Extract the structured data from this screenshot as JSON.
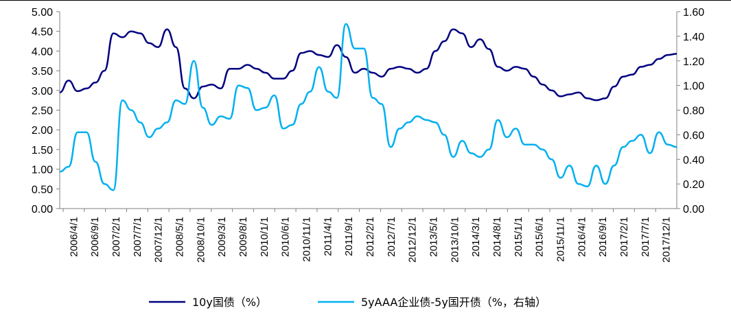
{
  "chart_data": {
    "type": "line",
    "x_labels": [
      "2006/4/1",
      "2006/9/1",
      "2007/2/1",
      "2007/7/1",
      "2007/12/1",
      "2008/5/1",
      "2008/10/1",
      "2009/3/1",
      "2009/8/1",
      "2010/1/1",
      "2010/6/1",
      "2010/11/1",
      "2011/4/1",
      "2011/9/1",
      "2012/2/1",
      "2012/7/1",
      "2012/12/1",
      "2013/5/1",
      "2013/10/1",
      "2014/3/1",
      "2014/8/1",
      "2015/1/1",
      "2015/6/1",
      "2015/11/1",
      "2016/4/1",
      "2016/9/1",
      "2017/2/1",
      "2017/7/1",
      "2017/12/1"
    ],
    "y_left": {
      "ticks": [
        "0.00",
        "0.50",
        "1.00",
        "1.50",
        "2.00",
        "2.50",
        "3.00",
        "3.50",
        "4.00",
        "4.50",
        "5.00"
      ],
      "min": 0,
      "max": 5
    },
    "y_right": {
      "ticks": [
        "0.00",
        "0.20",
        "0.40",
        "0.60",
        "0.80",
        "1.00",
        "1.20",
        "1.40",
        "1.60"
      ],
      "min": 0,
      "max": 1.6
    },
    "series": [
      {
        "name": "10y国债（%）",
        "axis": "left",
        "color": "#000080",
        "values": [
          [
            0,
            2.95
          ],
          [
            1,
            3.25
          ],
          [
            2,
            2.98
          ],
          [
            3,
            3.05
          ],
          [
            4,
            3.2
          ],
          [
            5,
            3.5
          ],
          [
            6,
            4.45
          ],
          [
            7,
            4.35
          ],
          [
            8,
            4.5
          ],
          [
            9,
            4.45
          ],
          [
            10,
            4.2
          ],
          [
            11,
            4.1
          ],
          [
            12,
            4.55
          ],
          [
            13,
            4.1
          ],
          [
            14,
            3.05
          ],
          [
            15,
            2.8
          ],
          [
            16,
            3.1
          ],
          [
            17,
            3.15
          ],
          [
            18,
            3.05
          ],
          [
            19,
            3.55
          ],
          [
            20,
            3.55
          ],
          [
            21,
            3.65
          ],
          [
            22,
            3.55
          ],
          [
            23,
            3.45
          ],
          [
            24,
            3.3
          ],
          [
            25,
            3.3
          ],
          [
            26,
            3.5
          ],
          [
            27,
            3.95
          ],
          [
            28,
            4.0
          ],
          [
            29,
            3.9
          ],
          [
            30,
            3.85
          ],
          [
            31,
            4.15
          ],
          [
            32,
            3.85
          ],
          [
            33,
            3.45
          ],
          [
            34,
            3.55
          ],
          [
            35,
            3.45
          ],
          [
            36,
            3.35
          ],
          [
            37,
            3.55
          ],
          [
            38,
            3.6
          ],
          [
            39,
            3.55
          ],
          [
            40,
            3.45
          ],
          [
            41,
            3.55
          ],
          [
            42,
            4.0
          ],
          [
            43,
            4.25
          ],
          [
            44,
            4.55
          ],
          [
            45,
            4.45
          ],
          [
            46,
            4.1
          ],
          [
            47,
            4.3
          ],
          [
            48,
            4.05
          ],
          [
            49,
            3.6
          ],
          [
            50,
            3.5
          ],
          [
            51,
            3.6
          ],
          [
            52,
            3.55
          ],
          [
            53,
            3.35
          ],
          [
            54,
            3.15
          ],
          [
            55,
            3.0
          ],
          [
            56,
            2.85
          ],
          [
            57,
            2.9
          ],
          [
            58,
            2.95
          ],
          [
            59,
            2.8
          ],
          [
            60,
            2.75
          ],
          [
            61,
            2.8
          ],
          [
            62,
            3.1
          ],
          [
            63,
            3.35
          ],
          [
            64,
            3.4
          ],
          [
            65,
            3.6
          ],
          [
            66,
            3.65
          ],
          [
            67,
            3.8
          ],
          [
            68,
            3.9
          ],
          [
            69,
            3.93
          ]
        ]
      },
      {
        "name": "5yAAA企业债-5y国开债（%，右轴）",
        "axis": "right",
        "color": "#00b0f0",
        "values": [
          [
            0,
            0.3
          ],
          [
            1,
            0.34
          ],
          [
            2,
            0.62
          ],
          [
            3,
            0.62
          ],
          [
            4,
            0.38
          ],
          [
            5,
            0.2
          ],
          [
            6,
            0.15
          ],
          [
            7,
            0.88
          ],
          [
            8,
            0.8
          ],
          [
            9,
            0.7
          ],
          [
            10,
            0.58
          ],
          [
            11,
            0.65
          ],
          [
            12,
            0.7
          ],
          [
            13,
            0.88
          ],
          [
            14,
            0.85
          ],
          [
            15,
            1.2
          ],
          [
            16,
            0.82
          ],
          [
            17,
            0.68
          ],
          [
            18,
            0.75
          ],
          [
            19,
            0.73
          ],
          [
            20,
            1.0
          ],
          [
            21,
            0.98
          ],
          [
            22,
            0.8
          ],
          [
            23,
            0.82
          ],
          [
            24,
            0.92
          ],
          [
            25,
            0.65
          ],
          [
            26,
            0.68
          ],
          [
            27,
            0.85
          ],
          [
            28,
            0.95
          ],
          [
            29,
            1.15
          ],
          [
            30,
            0.95
          ],
          [
            31,
            0.9
          ],
          [
            32,
            1.5
          ],
          [
            33,
            1.3
          ],
          [
            34,
            1.3
          ],
          [
            35,
            0.9
          ],
          [
            36,
            0.85
          ],
          [
            37,
            0.5
          ],
          [
            38,
            0.65
          ],
          [
            39,
            0.7
          ],
          [
            40,
            0.75
          ],
          [
            41,
            0.72
          ],
          [
            42,
            0.7
          ],
          [
            43,
            0.6
          ],
          [
            44,
            0.42
          ],
          [
            45,
            0.55
          ],
          [
            46,
            0.45
          ],
          [
            47,
            0.42
          ],
          [
            48,
            0.48
          ],
          [
            49,
            0.72
          ],
          [
            50,
            0.58
          ],
          [
            51,
            0.65
          ],
          [
            52,
            0.52
          ],
          [
            53,
            0.52
          ],
          [
            54,
            0.48
          ],
          [
            55,
            0.4
          ],
          [
            56,
            0.25
          ],
          [
            57,
            0.35
          ],
          [
            58,
            0.2
          ],
          [
            59,
            0.18
          ],
          [
            60,
            0.35
          ],
          [
            61,
            0.2
          ],
          [
            62,
            0.35
          ],
          [
            63,
            0.5
          ],
          [
            64,
            0.55
          ],
          [
            65,
            0.6
          ],
          [
            66,
            0.45
          ],
          [
            67,
            0.62
          ],
          [
            68,
            0.52
          ],
          [
            69,
            0.5
          ]
        ]
      }
    ]
  },
  "legend": {
    "items": [
      {
        "label": "10y国债（%）",
        "color": "#000080"
      },
      {
        "label": "5yAAA企业债-5y国开债（%，右轴）",
        "color": "#00b0f0"
      }
    ]
  }
}
